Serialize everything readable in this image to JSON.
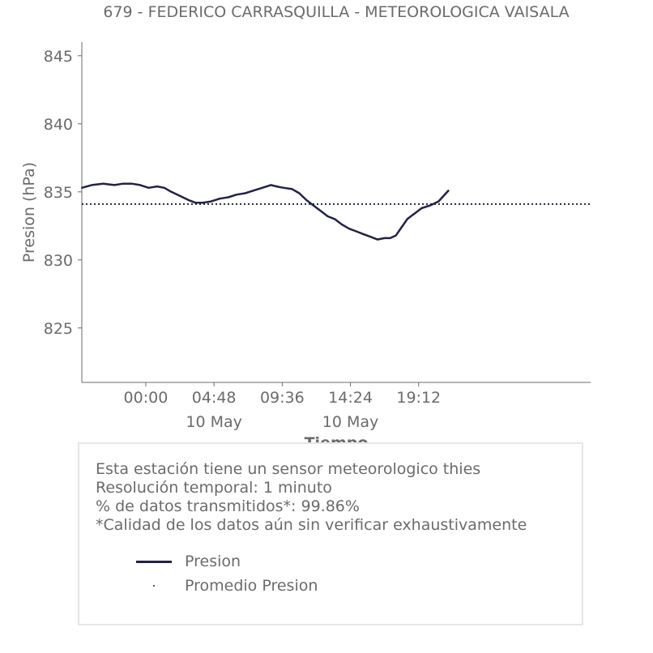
{
  "chart_data": {
    "type": "line",
    "title": "679 - FEDERICO CARRASQUILLA - METEOROLOGICA VAISALA",
    "xlabel": "Tiempo",
    "ylabel": "Presion (hPa)",
    "ylim": [
      821,
      846
    ],
    "yticks": [
      845,
      840,
      835,
      830,
      825
    ],
    "xlim": [
      -4.5,
      31.3
    ],
    "xticks": [
      {
        "value": 0,
        "label": "00:00",
        "sublabel": ""
      },
      {
        "value": 4.8,
        "label": "04:48",
        "sublabel": "10 May"
      },
      {
        "value": 9.6,
        "label": "09:36",
        "sublabel": ""
      },
      {
        "value": 14.4,
        "label": "14:24",
        "sublabel": "10 May"
      },
      {
        "value": 19.2,
        "label": "19:12",
        "sublabel": ""
      }
    ],
    "grid": false,
    "series": [
      {
        "name": "Presion",
        "color": "#232341",
        "x": [
          -4.5,
          -3.8,
          -3.0,
          -2.2,
          -1.6,
          -1.0,
          -0.4,
          0.2,
          0.8,
          1.3,
          1.8,
          2.4,
          3.0,
          3.5,
          4.0,
          4.6,
          5.2,
          5.8,
          6.4,
          7.0,
          7.6,
          8.2,
          8.8,
          9.2,
          9.7,
          10.3,
          10.8,
          11.3,
          11.8,
          12.3,
          12.8,
          13.3,
          13.8,
          14.3,
          14.8,
          15.3,
          15.8,
          16.3,
          16.8,
          17.2,
          17.6,
          18.0,
          18.4,
          18.9,
          19.4,
          20.0,
          20.6,
          21.3
        ],
        "values": [
          835.3,
          835.5,
          835.6,
          835.5,
          835.6,
          835.6,
          835.5,
          835.3,
          835.4,
          835.3,
          835.0,
          834.7,
          834.4,
          834.2,
          834.2,
          834.3,
          834.5,
          834.6,
          834.8,
          834.9,
          835.1,
          835.3,
          835.5,
          835.4,
          835.3,
          835.2,
          834.9,
          834.4,
          834.0,
          833.6,
          833.2,
          833.0,
          832.6,
          832.3,
          832.1,
          831.9,
          831.7,
          831.5,
          831.6,
          831.6,
          831.8,
          832.4,
          833.0,
          833.4,
          833.8,
          834.0,
          834.3,
          835.1
        ]
      },
      {
        "name": "Promedio Presion",
        "color": "#232341",
        "value": 834.1
      }
    ],
    "legend": "bottom-inside-info-box"
  },
  "info": {
    "line1": "Esta estación tiene un sensor meteorologico thies",
    "line2": "Resolución temporal: 1 minuto",
    "line3": "% de datos transmitidos*: 99.86%",
    "line4": "*Calidad de los datos aún sin verificar exhaustivamente"
  },
  "colors": {
    "text": "#6b6b6b",
    "series": "#232341",
    "axis": "#6b6b6b",
    "box_border": "#e6e6e6"
  }
}
